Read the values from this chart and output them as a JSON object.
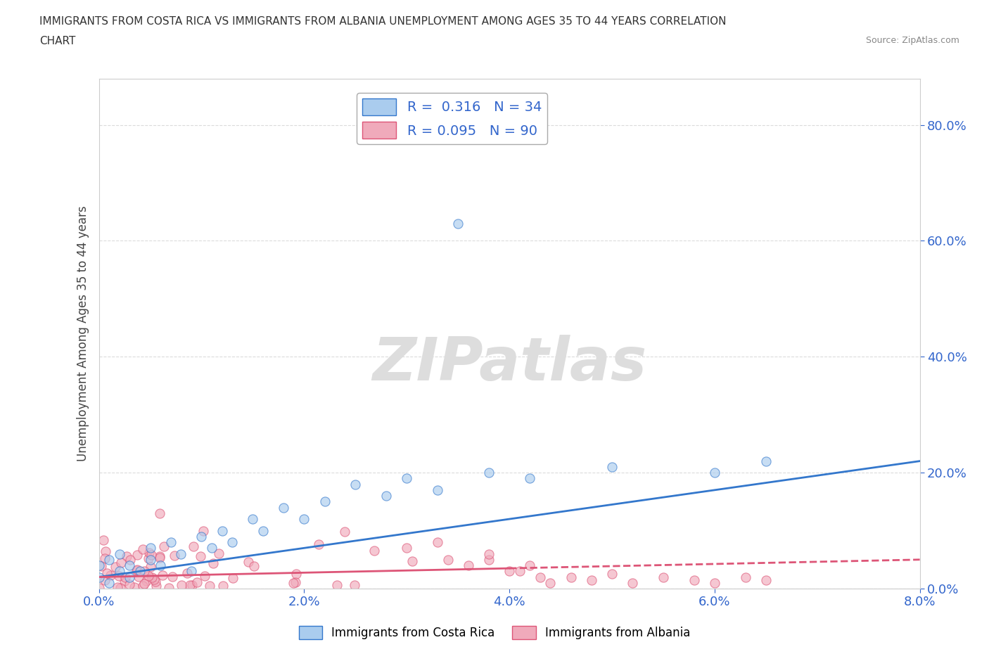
{
  "title_line1": "IMMIGRANTS FROM COSTA RICA VS IMMIGRANTS FROM ALBANIA UNEMPLOYMENT AMONG AGES 35 TO 44 YEARS CORRELATION",
  "title_line2": "CHART",
  "source": "Source: ZipAtlas.com",
  "ylabel": "Unemployment Among Ages 35 to 44 years",
  "xlim": [
    0.0,
    0.08
  ],
  "ylim": [
    0.0,
    0.88
  ],
  "xticks": [
    0.0,
    0.02,
    0.04,
    0.06,
    0.08
  ],
  "yticks": [
    0.0,
    0.2,
    0.4,
    0.6,
    0.8
  ],
  "xticklabels": [
    "0.0%",
    "2.0%",
    "4.0%",
    "6.0%",
    "8.0%"
  ],
  "yticklabels": [
    "0.0%",
    "20.0%",
    "40.0%",
    "60.0%",
    "80.0%"
  ],
  "watermark": "ZIPatlas",
  "legend_R1": "R =  0.316",
  "legend_N1": "N = 34",
  "legend_R2": "R = 0.095",
  "legend_N2": "N = 90",
  "color_costa_rica": "#aaccee",
  "color_albania": "#f0aabb",
  "line_color_costa_rica": "#3377cc",
  "line_color_albania": "#dd5577",
  "legend_text_color": "#3366cc",
  "tick_color": "#3366cc",
  "background_color": "#ffffff",
  "watermark_color": "#dddddd",
  "grid_color": "#cccccc"
}
